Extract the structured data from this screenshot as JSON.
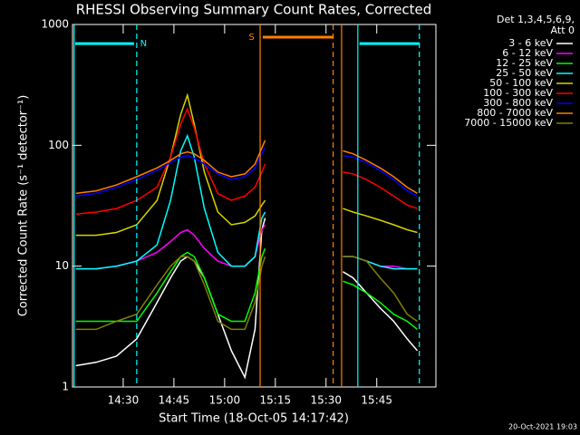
{
  "chart_data": {
    "type": "line",
    "title": "RHESSI Observing Summary Count Rates, Corrected",
    "x_label": "Start Time (18-Oct-05 14:17:42)",
    "y_label": "Corrected Count Rate (s⁻¹ detector⁻¹)",
    "legend_title": [
      "Det 1,3,4,5,6,9,",
      "Att 0"
    ],
    "footer": "20-Oct-2021 19:03",
    "log_y": true,
    "xlim": [
      855,
      962.5
    ],
    "ylim": [
      1,
      1000
    ],
    "xticks": [
      {
        "value": 870,
        "label": "14:30"
      },
      {
        "value": 885,
        "label": "14:45"
      },
      {
        "value": 900,
        "label": "15:00"
      },
      {
        "value": 915,
        "label": "15:15"
      },
      {
        "value": 930,
        "label": "15:30"
      },
      {
        "value": 945,
        "label": "15:45"
      }
    ],
    "yticks": [
      1,
      10,
      100,
      1000
    ],
    "x": [
      856,
      862,
      868,
      874,
      880,
      884,
      887,
      889,
      891,
      894,
      898,
      902,
      906,
      909,
      911,
      912,
      925,
      935,
      938,
      942,
      946,
      950,
      954,
      957
    ],
    "series": [
      {
        "name": "3 - 6 keV",
        "color": "#ffffff",
        "values": [
          1.5,
          1.6,
          1.8,
          2.5,
          5,
          8,
          11,
          12,
          11,
          8,
          4,
          2,
          1.2,
          3,
          20,
          25,
          null,
          9,
          8,
          6,
          4.5,
          3.5,
          2.5,
          2
        ]
      },
      {
        "name": "6 - 12 keV",
        "color": "#ff00ff",
        "values": [
          9.5,
          9.5,
          10,
          11,
          13,
          16,
          19,
          20,
          18,
          14,
          11,
          10,
          10,
          12,
          20,
          22,
          null,
          12,
          12,
          11,
          10,
          10,
          9.5,
          9.5
        ]
      },
      {
        "name": "12 - 25 keV",
        "color": "#00ff00",
        "values": [
          3.5,
          3.5,
          3.5,
          3.5,
          6,
          9,
          12,
          13,
          12,
          8,
          4,
          3.5,
          3.5,
          6,
          12,
          14,
          null,
          7.5,
          7,
          6,
          5,
          4,
          3.5,
          3
        ]
      },
      {
        "name": "25 - 50 keV",
        "color": "#00ffff",
        "values": [
          9.5,
          9.5,
          10,
          11,
          15,
          35,
          90,
          120,
          80,
          30,
          13,
          10,
          10,
          12,
          25,
          28,
          null,
          12,
          12,
          11,
          10,
          9.5,
          9.5,
          9.5
        ]
      },
      {
        "name": "50 - 100 keV",
        "color": "#d4d400",
        "values": [
          18,
          18,
          19,
          22,
          35,
          80,
          180,
          260,
          150,
          60,
          28,
          22,
          23,
          26,
          32,
          35,
          null,
          30,
          28,
          26,
          24,
          22,
          20,
          19
        ]
      },
      {
        "name": "100 - 300 keV",
        "color": "#ff0000",
        "values": [
          27,
          28,
          30,
          35,
          45,
          80,
          150,
          200,
          140,
          70,
          40,
          35,
          38,
          45,
          60,
          70,
          null,
          60,
          58,
          52,
          45,
          38,
          32,
          30
        ]
      },
      {
        "name": "300 - 800 keV",
        "color": "#0000ff",
        "values": [
          38,
          40,
          45,
          52,
          62,
          72,
          80,
          82,
          78,
          70,
          58,
          52,
          55,
          65,
          85,
          95,
          null,
          82,
          80,
          72,
          62,
          52,
          42,
          38
        ]
      },
      {
        "name": "800 - 7000 keV",
        "color": "#ff8000",
        "values": [
          40,
          42,
          47,
          55,
          65,
          75,
          85,
          88,
          85,
          75,
          60,
          55,
          58,
          70,
          95,
          110,
          null,
          90,
          85,
          75,
          65,
          55,
          45,
          40
        ]
      },
      {
        "name": "7000 - 15000 keV",
        "color": "#808000",
        "values": [
          3,
          3,
          3.5,
          4,
          7,
          10,
          12,
          12,
          11,
          7,
          3.5,
          3,
          3,
          5,
          10,
          12,
          null,
          12,
          12,
          11,
          8,
          6,
          4,
          3.5
        ]
      }
    ],
    "vlines": [
      {
        "x": 855.5,
        "color": "#00ffff",
        "dashed": false
      },
      {
        "x": 874.0,
        "color": "#00ffff",
        "dashed": true
      },
      {
        "x": 910.5,
        "color": "#ff8000",
        "dashed": false
      },
      {
        "x": 932.1,
        "color": "#ff8000",
        "dashed": true
      },
      {
        "x": 934.6,
        "color": "#ff8000",
        "dashed": false
      },
      {
        "x": 939.4,
        "color": "#00ffff",
        "dashed": false
      },
      {
        "x": 957.6,
        "color": "#00ffff",
        "dashed": true
      }
    ],
    "hbars": [
      {
        "x": [
          855.8,
          873.2
        ],
        "y": 695,
        "color": "#00ffff"
      },
      {
        "x": [
          911.3,
          932.0
        ],
        "y": 785,
        "color": "#ff8000"
      },
      {
        "x": [
          939.9,
          957.6
        ],
        "y": 695,
        "color": "#00ffff"
      }
    ],
    "annotations": [
      {
        "text": "N",
        "x": 876,
        "y": 695,
        "color": "#00ffff"
      },
      {
        "text": "S",
        "x": 908,
        "y": 785,
        "color": "#ff8000"
      }
    ]
  }
}
